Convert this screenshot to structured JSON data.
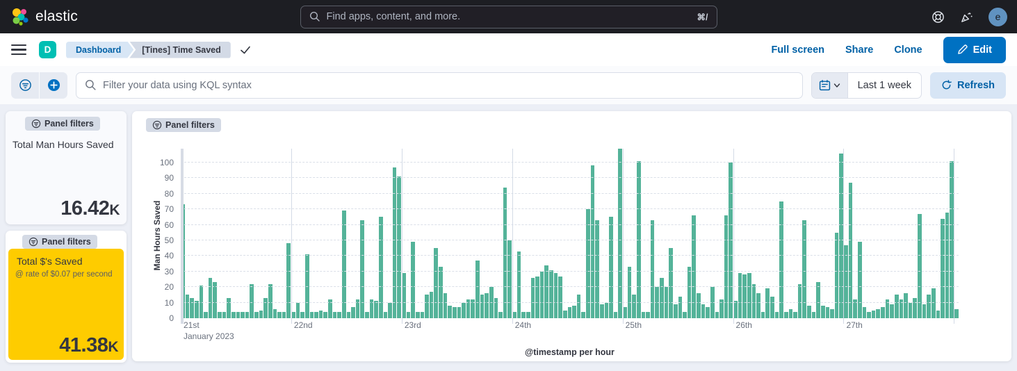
{
  "header": {
    "brand": "elastic",
    "search_placeholder": "Find apps, content, and more.",
    "search_shortcut": "⌘/",
    "avatar_initial": "e"
  },
  "toolbar": {
    "breadcrumb_root": "Dashboard",
    "breadcrumb_current": "[Tines] Time Saved",
    "actions": [
      "Full screen",
      "Share",
      "Clone"
    ],
    "edit_label": "Edit"
  },
  "filter_bar": {
    "kql_placeholder": "Filter your data using KQL syntax",
    "time_range": "Last 1 week",
    "refresh_label": "Refresh"
  },
  "panels": {
    "badge_label": "Panel filters",
    "metric1": {
      "title": "Total Man Hours Saved",
      "value": "16.42",
      "suffix": "K"
    },
    "metric2": {
      "title": "Total $'s Saved",
      "subtitle": "@ rate of $0.07 per second",
      "value": "41.38",
      "suffix": "K",
      "bg_color": "#fecc00"
    }
  },
  "chart_data": {
    "type": "bar",
    "title": "",
    "ylabel": "Man Hours Saved",
    "xlabel": "@timestamp per hour",
    "ylim": [
      0,
      100
    ],
    "yticks": [
      0,
      10,
      20,
      30,
      40,
      50,
      60,
      70,
      80,
      90,
      100
    ],
    "grid": "dashed-horizontal",
    "legend": "none",
    "bar_color": "#54b399",
    "x_start": "2023-01-21 00:00",
    "x_interval": "1 hour",
    "day_labels": [
      "21st",
      "22nd",
      "23rd",
      "24th",
      "25th",
      "26th",
      "27th"
    ],
    "month_label": "January 2023",
    "hours_per_day": 24,
    "values": [
      73,
      15,
      13,
      11,
      21,
      4,
      26,
      23,
      4,
      4,
      13,
      4,
      4,
      4,
      4,
      22,
      4,
      5,
      13,
      22,
      6,
      4,
      4,
      48,
      4,
      10,
      4,
      41,
      4,
      4,
      5,
      4,
      12,
      4,
      4,
      69,
      4,
      7,
      12,
      63,
      4,
      12,
      11,
      65,
      4,
      10,
      97,
      91,
      29,
      4,
      49,
      4,
      4,
      15,
      17,
      45,
      33,
      16,
      8,
      7,
      7,
      10,
      12,
      12,
      37,
      15,
      16,
      20,
      13,
      4,
      84,
      50,
      4,
      43,
      4,
      4,
      26,
      27,
      30,
      34,
      31,
      29,
      27,
      5,
      7,
      8,
      15,
      4,
      70,
      98,
      63,
      9,
      10,
      65,
      4,
      109,
      7,
      33,
      15,
      101,
      4,
      4,
      63,
      20,
      26,
      20,
      45,
      9,
      14,
      4,
      33,
      66,
      16,
      9,
      7,
      20,
      4,
      12,
      66,
      100,
      11,
      29,
      28,
      29,
      22,
      16,
      4,
      19,
      14,
      4,
      75,
      4,
      6,
      4,
      22,
      63,
      8,
      4,
      23,
      8,
      7,
      6,
      55,
      106,
      47,
      87,
      12,
      49,
      7,
      4,
      5,
      6,
      7,
      12,
      9,
      15,
      12,
      16,
      10,
      13,
      67,
      9,
      15,
      19,
      5,
      64,
      68,
      101,
      6
    ]
  }
}
